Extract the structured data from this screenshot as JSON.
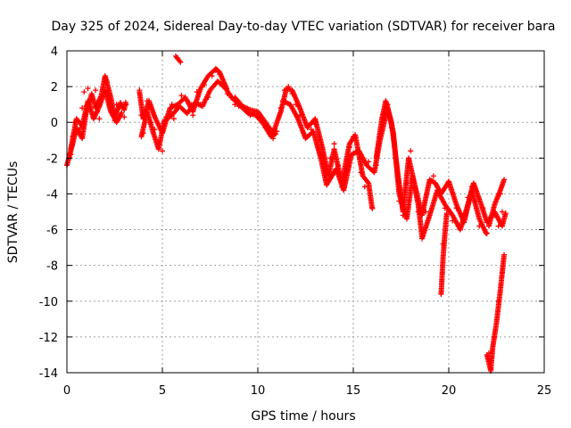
{
  "chart_data": {
    "type": "scatter",
    "title": "Day 325 of 2024, Sidereal Day-to-day VTEC variation (SDTVAR) for receiver bara",
    "xlabel": "GPS time / hours",
    "ylabel": "SDTVAR / TECUs",
    "xlim": [
      0,
      25
    ],
    "ylim": [
      -14,
      4
    ],
    "xticks": [
      0,
      5,
      10,
      15,
      20,
      25
    ],
    "yticks": [
      4,
      2,
      0,
      -2,
      -4,
      -6,
      -8,
      -10,
      -12,
      -14
    ],
    "grid": true,
    "marker": "plus",
    "color": "#ff0000",
    "series": [
      {
        "name": "SDTVAR",
        "points": [
          [
            0.0,
            -2.4
          ],
          [
            0.2,
            -1.8
          ],
          [
            0.3,
            -0.8
          ],
          [
            0.4,
            0.0
          ],
          [
            0.5,
            -0.6
          ],
          [
            0.7,
            -0.3
          ],
          [
            0.8,
            0.8
          ],
          [
            0.9,
            1.7
          ],
          [
            1.0,
            0.9
          ],
          [
            1.1,
            1.9
          ],
          [
            1.3,
            1.3
          ],
          [
            1.5,
            1.8
          ],
          [
            1.6,
            0.6
          ],
          [
            1.7,
            0.2
          ],
          [
            1.8,
            1.2
          ],
          [
            2.0,
            2.5
          ],
          [
            2.1,
            2.3
          ],
          [
            2.2,
            1.6
          ],
          [
            2.4,
            0.5
          ],
          [
            2.5,
            0.1
          ],
          [
            2.6,
            1.0
          ],
          [
            2.8,
            0.9
          ],
          [
            3.0,
            0.3
          ],
          [
            3.1,
            1.0
          ],
          [
            3.8,
            1.8
          ],
          [
            3.9,
            0.4
          ],
          [
            4.0,
            -0.6
          ],
          [
            4.2,
            1.2
          ],
          [
            4.3,
            0.8
          ],
          [
            4.4,
            0.0
          ],
          [
            4.6,
            -0.4
          ],
          [
            4.8,
            -1.2
          ],
          [
            5.0,
            -1.6
          ],
          [
            5.2,
            0.3
          ],
          [
            5.4,
            0.6
          ],
          [
            5.5,
            1.0
          ],
          [
            5.6,
            0.2
          ],
          [
            5.8,
            3.6
          ],
          [
            6.0,
            1.5
          ],
          [
            6.2,
            0.6
          ],
          [
            6.4,
            1.1
          ],
          [
            6.6,
            0.4
          ],
          [
            6.8,
            1.7
          ],
          [
            7.0,
            1.0
          ],
          [
            7.2,
            2.1
          ],
          [
            7.4,
            1.4
          ],
          [
            7.6,
            2.6
          ],
          [
            7.8,
            2.9
          ],
          [
            8.0,
            2.7
          ],
          [
            8.2,
            2.2
          ],
          [
            8.4,
            1.6
          ],
          [
            8.6,
            1.4
          ],
          [
            8.8,
            1.0
          ],
          [
            9.0,
            0.9
          ],
          [
            9.2,
            0.8
          ],
          [
            9.4,
            0.6
          ],
          [
            9.6,
            0.4
          ],
          [
            9.8,
            0.5
          ],
          [
            10.0,
            0.3
          ],
          [
            10.2,
            0.1
          ],
          [
            10.4,
            -0.3
          ],
          [
            10.6,
            -0.6
          ],
          [
            10.8,
            -0.9
          ],
          [
            11.0,
            -0.5
          ],
          [
            11.2,
            0.8
          ],
          [
            11.4,
            1.8
          ],
          [
            11.6,
            2.0
          ],
          [
            11.8,
            1.6
          ],
          [
            12.0,
            1.0
          ],
          [
            12.2,
            0.4
          ],
          [
            12.4,
            -0.6
          ],
          [
            12.6,
            -0.8
          ],
          [
            12.8,
            -0.4
          ],
          [
            13.0,
            -0.1
          ],
          [
            13.2,
            -1.0
          ],
          [
            13.4,
            -1.8
          ],
          [
            13.6,
            -3.2
          ],
          [
            13.8,
            -2.0
          ],
          [
            14.0,
            -1.2
          ],
          [
            14.2,
            -2.4
          ],
          [
            14.4,
            -3.6
          ],
          [
            14.6,
            -2.6
          ],
          [
            14.8,
            -1.4
          ],
          [
            15.0,
            -0.8
          ],
          [
            15.2,
            -1.6
          ],
          [
            15.4,
            -2.8
          ],
          [
            15.6,
            -3.6
          ],
          [
            15.8,
            -2.2
          ],
          [
            16.0,
            -4.8
          ],
          [
            16.2,
            -2.4
          ],
          [
            16.4,
            -0.6
          ],
          [
            16.6,
            0.5
          ],
          [
            16.8,
            1.0
          ],
          [
            17.0,
            -0.3
          ],
          [
            17.2,
            -2.0
          ],
          [
            17.4,
            -4.4
          ],
          [
            17.6,
            -5.2
          ],
          [
            17.8,
            -3.4
          ],
          [
            18.0,
            -1.6
          ],
          [
            18.2,
            -3.6
          ],
          [
            18.4,
            -5.0
          ],
          [
            18.6,
            -6.4
          ],
          [
            18.8,
            -5.0
          ],
          [
            19.0,
            -3.4
          ],
          [
            19.2,
            -3.0
          ],
          [
            19.4,
            -3.6
          ],
          [
            19.6,
            -9.6
          ],
          [
            19.7,
            -6.8
          ],
          [
            19.8,
            -4.8
          ],
          [
            20.0,
            -3.5
          ],
          [
            20.2,
            -5.5
          ],
          [
            20.4,
            -4.8
          ],
          [
            20.6,
            -6.0
          ],
          [
            20.8,
            -5.2
          ],
          [
            21.0,
            -4.2
          ],
          [
            21.2,
            -3.6
          ],
          [
            21.4,
            -4.4
          ],
          [
            21.6,
            -5.8
          ],
          [
            21.8,
            -4.8
          ],
          [
            22.0,
            -6.2
          ],
          [
            22.1,
            -12.9
          ],
          [
            22.2,
            -13.8
          ],
          [
            22.4,
            -12.0
          ],
          [
            22.6,
            -10.0
          ],
          [
            22.8,
            -8.4
          ],
          [
            22.9,
            -7.4
          ],
          [
            22.4,
            -5.2
          ],
          [
            22.6,
            -5.8
          ],
          [
            22.8,
            -5.0
          ],
          [
            22.7,
            -4.0
          ],
          [
            22.9,
            -3.2
          ]
        ]
      }
    ],
    "series_paths": [
      [
        [
          0.0,
          -2.4
        ],
        [
          0.3,
          -1.2
        ],
        [
          0.5,
          -0.3
        ],
        [
          0.8,
          -0.9
        ],
        [
          1.0,
          0.5
        ],
        [
          1.3,
          1.6
        ],
        [
          1.5,
          0.8
        ],
        [
          1.8,
          1.5
        ],
        [
          2.0,
          2.6
        ],
        [
          2.3,
          1.4
        ],
        [
          2.5,
          0.3
        ],
        [
          2.8,
          1.1
        ],
        [
          3.0,
          0.7
        ],
        [
          3.1,
          1.2
        ]
      ],
      [
        [
          0.2,
          -1.5
        ],
        [
          0.5,
          0.2
        ],
        [
          0.8,
          -0.2
        ],
        [
          1.1,
          1.2
        ],
        [
          1.4,
          0.2
        ],
        [
          1.7,
          0.9
        ],
        [
          2.0,
          1.8
        ],
        [
          2.3,
          0.6
        ],
        [
          2.6,
          0.0
        ],
        [
          2.9,
          0.6
        ]
      ],
      [
        [
          3.8,
          1.7
        ],
        [
          4.0,
          0.2
        ],
        [
          4.3,
          1.2
        ],
        [
          4.6,
          0.3
        ],
        [
          5.0,
          -0.6
        ],
        [
          5.4,
          0.8
        ],
        [
          5.8,
          1.0
        ],
        [
          6.2,
          1.4
        ],
        [
          6.6,
          0.6
        ],
        [
          7.0,
          1.9
        ],
        [
          7.4,
          2.6
        ],
        [
          7.8,
          3.0
        ],
        [
          8.0,
          2.8
        ],
        [
          8.4,
          1.8
        ]
      ],
      [
        [
          3.9,
          -0.8
        ],
        [
          4.2,
          0.6
        ],
        [
          4.5,
          -0.5
        ],
        [
          4.8,
          -1.5
        ],
        [
          5.1,
          0.1
        ],
        [
          5.5,
          0.4
        ],
        [
          5.9,
          0.9
        ],
        [
          6.3,
          0.5
        ],
        [
          6.7,
          1.1
        ],
        [
          7.1,
          0.9
        ],
        [
          7.5,
          1.8
        ],
        [
          7.9,
          2.3
        ],
        [
          8.3,
          1.9
        ],
        [
          8.7,
          1.3
        ],
        [
          9.1,
          0.9
        ],
        [
          9.5,
          0.5
        ],
        [
          9.9,
          0.4
        ],
        [
          10.3,
          -0.1
        ],
        [
          10.7,
          -0.8
        ],
        [
          11.0,
          -0.6
        ]
      ],
      [
        [
          5.7,
          3.7
        ],
        [
          6.0,
          3.3
        ]
      ],
      [
        [
          8.8,
          1.4
        ],
        [
          9.2,
          0.9
        ],
        [
          9.6,
          0.7
        ],
        [
          10.0,
          0.6
        ],
        [
          10.4,
          0.0
        ],
        [
          10.8,
          -0.6
        ],
        [
          11.2,
          0.6
        ],
        [
          11.5,
          1.9
        ],
        [
          11.8,
          1.8
        ],
        [
          12.2,
          0.8
        ],
        [
          12.6,
          -0.3
        ],
        [
          13.0,
          0.2
        ],
        [
          13.4,
          -1.5
        ],
        [
          13.7,
          -3.0
        ],
        [
          14.0,
          -1.5
        ],
        [
          14.4,
          -3.4
        ],
        [
          14.8,
          -1.2
        ],
        [
          15.1,
          -0.7
        ],
        [
          15.5,
          -3.0
        ],
        [
          15.8,
          -3.4
        ],
        [
          16.0,
          -4.9
        ]
      ],
      [
        [
          11.3,
          1.2
        ],
        [
          11.7,
          1.0
        ],
        [
          12.1,
          0.2
        ],
        [
          12.5,
          -0.9
        ],
        [
          12.9,
          -0.5
        ],
        [
          13.3,
          -2.0
        ],
        [
          13.6,
          -3.5
        ],
        [
          14.1,
          -2.6
        ],
        [
          14.5,
          -3.8
        ],
        [
          14.9,
          -1.8
        ],
        [
          15.3,
          -1.6
        ],
        [
          15.7,
          -2.4
        ],
        [
          16.1,
          -2.8
        ],
        [
          16.4,
          -1.0
        ],
        [
          16.8,
          0.8
        ],
        [
          17.1,
          -0.6
        ],
        [
          17.4,
          -4.0
        ],
        [
          17.8,
          -5.4
        ],
        [
          18.1,
          -3.0
        ],
        [
          18.4,
          -4.6
        ],
        [
          18.6,
          -6.4
        ]
      ],
      [
        [
          16.2,
          -2.0
        ],
        [
          16.5,
          0.2
        ],
        [
          16.7,
          1.2
        ],
        [
          17.0,
          0.0
        ],
        [
          17.3,
          -2.6
        ],
        [
          17.6,
          -5.0
        ],
        [
          17.9,
          -2.0
        ],
        [
          18.2,
          -3.4
        ],
        [
          18.6,
          -5.2
        ],
        [
          19.0,
          -3.2
        ],
        [
          19.3,
          -3.4
        ],
        [
          19.6,
          -4.0
        ],
        [
          20.0,
          -3.3
        ],
        [
          20.4,
          -4.6
        ],
        [
          20.8,
          -5.6
        ],
        [
          21.2,
          -3.8
        ],
        [
          21.6,
          -5.4
        ],
        [
          22.0,
          -6.3
        ]
      ],
      [
        [
          18.6,
          -6.5
        ],
        [
          19.0,
          -5.2
        ],
        [
          19.4,
          -3.8
        ],
        [
          19.8,
          -4.6
        ],
        [
          20.2,
          -5.2
        ],
        [
          20.6,
          -6.0
        ],
        [
          21.0,
          -4.6
        ],
        [
          21.3,
          -3.4
        ],
        [
          21.7,
          -4.6
        ],
        [
          22.0,
          -5.6
        ],
        [
          22.4,
          -5.0
        ],
        [
          22.8,
          -5.8
        ],
        [
          23.0,
          -5.0
        ]
      ],
      [
        [
          19.6,
          -9.6
        ],
        [
          19.7,
          -7.6
        ],
        [
          19.8,
          -6.2
        ],
        [
          19.9,
          -5.0
        ]
      ],
      [
        [
          22.0,
          -13.0
        ],
        [
          22.2,
          -13.9
        ],
        [
          22.3,
          -12.6
        ],
        [
          22.5,
          -11.2
        ],
        [
          22.7,
          -9.4
        ],
        [
          22.9,
          -7.4
        ]
      ],
      [
        [
          22.1,
          -5.8
        ],
        [
          22.4,
          -4.6
        ],
        [
          22.7,
          -3.8
        ],
        [
          22.9,
          -3.2
        ]
      ]
    ]
  }
}
